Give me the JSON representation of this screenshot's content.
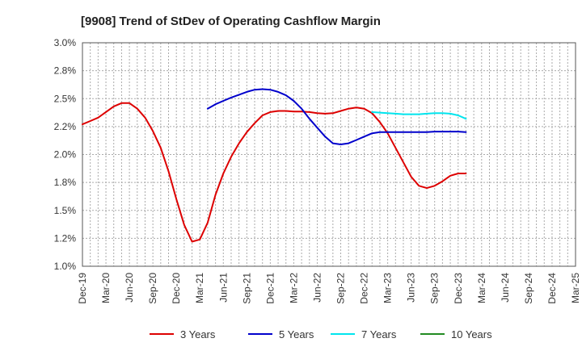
{
  "chart_data": {
    "type": "line",
    "title": "[9908]  Trend of StDev of Operating Cashflow Margin",
    "xlabel": "",
    "ylabel": "",
    "ylim": [
      1.0,
      3.0
    ],
    "y_ticks": [
      "1.0%",
      "1.2%",
      "1.5%",
      "1.8%",
      "2.0%",
      "2.2%",
      "2.5%",
      "2.8%",
      "3.0%"
    ],
    "x_ticks": [
      "Dec-19",
      "Mar-20",
      "Jun-20",
      "Sep-20",
      "Dec-20",
      "Mar-21",
      "Jun-21",
      "Sep-21",
      "Dec-21",
      "Mar-22",
      "Jun-22",
      "Sep-22",
      "Dec-22",
      "Mar-23",
      "Jun-23",
      "Sep-23",
      "Dec-23",
      "Mar-24",
      "Jun-24",
      "Sep-24",
      "Dec-24",
      "Mar-25"
    ],
    "grid": true,
    "legend_position": "bottom",
    "series": [
      {
        "name": "3 Years",
        "color": "#dd0000",
        "values": [
          2.27,
          2.3,
          2.33,
          2.38,
          2.43,
          2.46,
          2.46,
          2.41,
          2.33,
          2.21,
          2.06,
          1.85,
          1.6,
          1.37,
          1.22,
          1.24,
          1.39,
          1.64,
          1.83,
          1.98,
          2.1,
          2.2,
          2.28,
          2.35,
          2.38,
          2.39,
          2.39,
          2.385,
          2.385,
          2.38,
          2.37,
          2.365,
          2.37,
          2.39,
          2.41,
          2.42,
          2.41,
          2.37,
          2.29,
          2.19,
          2.06,
          1.93,
          1.8,
          1.72,
          1.7,
          1.72,
          1.76,
          1.81,
          1.83,
          1.83
        ]
      },
      {
        "name": "5 Years",
        "color": "#0000cc",
        "values": [
          null,
          null,
          null,
          null,
          null,
          null,
          null,
          null,
          null,
          null,
          null,
          null,
          null,
          null,
          null,
          null,
          2.41,
          2.45,
          2.48,
          2.51,
          2.535,
          2.56,
          2.58,
          2.585,
          2.58,
          2.56,
          2.53,
          2.48,
          2.41,
          2.32,
          2.24,
          2.16,
          2.1,
          2.09,
          2.1,
          2.13,
          2.16,
          2.19,
          2.2,
          2.2,
          2.2,
          2.2,
          2.2,
          2.2,
          2.2,
          2.205,
          2.205,
          2.205,
          2.205,
          2.2
        ]
      },
      {
        "name": "7 Years",
        "color": "#00e5ee",
        "values": [
          null,
          null,
          null,
          null,
          null,
          null,
          null,
          null,
          null,
          null,
          null,
          null,
          null,
          null,
          null,
          null,
          null,
          null,
          null,
          null,
          null,
          null,
          null,
          null,
          null,
          null,
          null,
          null,
          null,
          null,
          null,
          null,
          null,
          null,
          null,
          null,
          null,
          2.38,
          2.375,
          2.37,
          2.365,
          2.36,
          2.36,
          2.36,
          2.365,
          2.37,
          2.37,
          2.365,
          2.35,
          2.32
        ]
      },
      {
        "name": "10 Years",
        "color": "#228b22",
        "values": []
      }
    ]
  }
}
